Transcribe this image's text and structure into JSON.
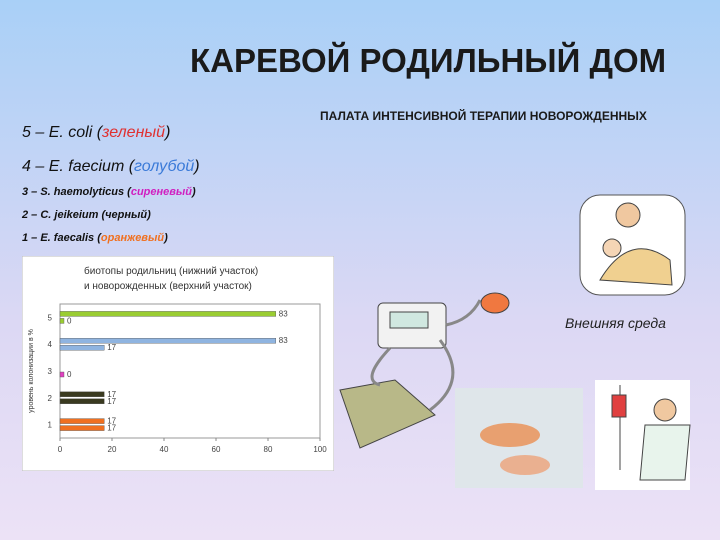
{
  "title": "КАРЕВОЙ РОДИЛЬНЫЙ ДОМ",
  "subtitle": "ПАЛАТА ИНТЕНСИВНОЙ ТЕРАПИИ НОВОРОЖДЕННЫХ",
  "legend": [
    {
      "prefix": "5 – E. coli (",
      "color_word": "зеленый",
      "suffix": ")",
      "word_color": "#e03030"
    },
    {
      "prefix": "4 – E. faecium (",
      "color_word": "голубой",
      "suffix": ")",
      "word_color": "#3a7ad8"
    },
    {
      "prefix": "3 – S. haemolyticus (",
      "color_word": "сиреневый",
      "suffix": ")",
      "word_color": "#d020c0"
    },
    {
      "prefix": "2 – C. jeikeium (черный)",
      "color_word": null,
      "suffix": null,
      "word_color": null
    },
    {
      "prefix": "1 – E. faecalis (",
      "color_word": "оранжевый",
      "suffix": ")",
      "word_color": "#f07020"
    }
  ],
  "caption": "Внешняя среда",
  "chart_data": {
    "type": "hbar",
    "title": [
      "биотопы родильниц (нижний участок)",
      "и новорожденных (верхний участок)"
    ],
    "y_label": "уровень колонизации в %",
    "categories": [
      "1",
      "2",
      "3",
      "4",
      "5"
    ],
    "colors": [
      "#f07020",
      "#3a3a20",
      "#e040c0",
      "#8fb4e0",
      "#9acd32"
    ],
    "series": [
      {
        "values": [
          17,
          17,
          null,
          83,
          83
        ]
      },
      {
        "values": [
          17,
          17,
          0,
          17,
          0
        ]
      }
    ],
    "xlim": [
      0,
      100
    ],
    "xticks": [
      0,
      20,
      40,
      60,
      80,
      100
    ]
  }
}
